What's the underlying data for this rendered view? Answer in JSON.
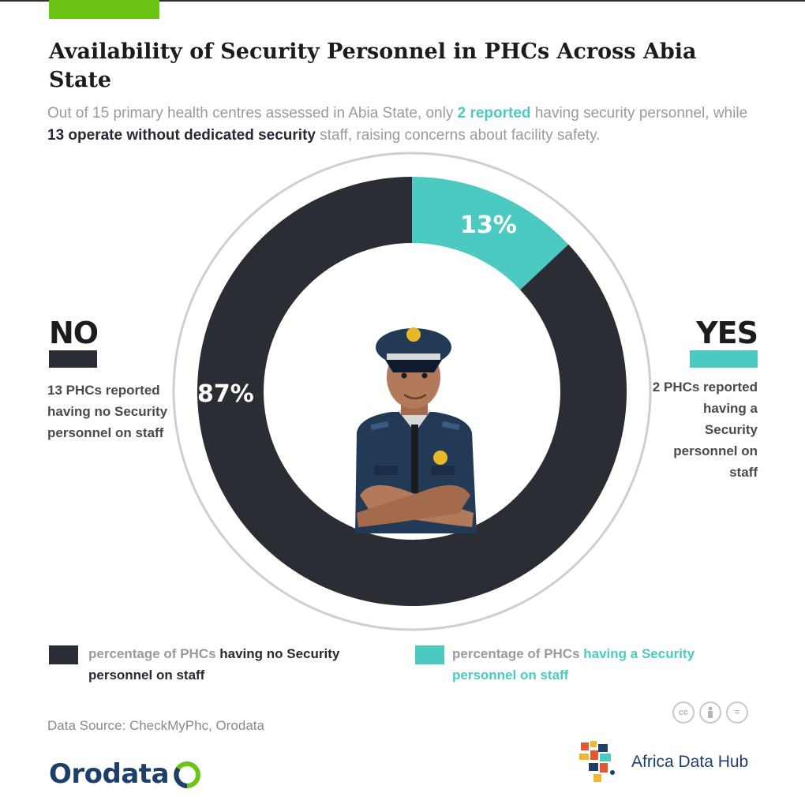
{
  "header": {
    "title": "Availability of Security Personnel in PHCs Across Abia State",
    "subtitle_parts": [
      "Out of 15 primary health centres assessed in Abia State, only ",
      "2 reported",
      " having security personnel, while ",
      "13 operate without dedicated security",
      " staff, raising concerns about facility safety."
    ]
  },
  "chart_data": {
    "type": "pie",
    "categories": [
      "YES",
      "NO"
    ],
    "values": [
      13,
      87
    ],
    "value_labels": [
      "13%",
      "87%"
    ],
    "colors": [
      "#4ccac2",
      "#2a2d33"
    ]
  },
  "sides": {
    "no_word": "NO",
    "no_text": "13 PHCs reported having no Security personnel on staff",
    "yes_word": "YES",
    "yes_text": "2 PHCs reported having a Security personnel on staff"
  },
  "legend": {
    "no_muted": "percentage of PHCs ",
    "no_bold": "having no Security personnel on staff",
    "yes_muted": "percentage of PHCs ",
    "yes_bold": "having a Security personnel on staff"
  },
  "footer": {
    "source": "Data Source: CheckMyPhc, Orodata",
    "license_icons": [
      "creative-commons-icon",
      "attribution-icon",
      "no-derivatives-icon"
    ],
    "license_labels": [
      "cc",
      "",
      "="
    ],
    "orodata_logo": "Orodata",
    "adh_logo": "Africa Data Hub"
  }
}
